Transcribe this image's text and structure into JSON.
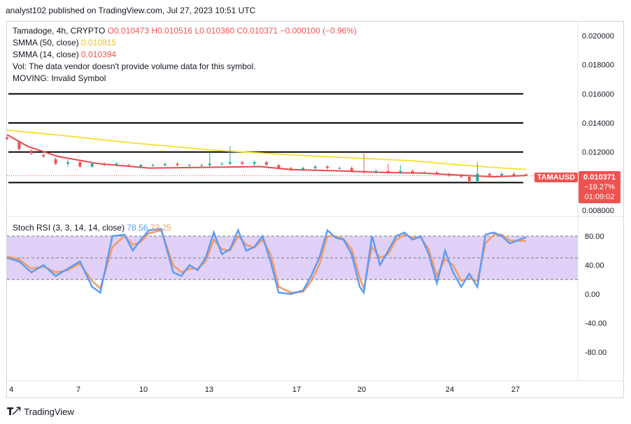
{
  "header": {
    "publisher_line": "analyst102 published on TradingView.com, Jul 27, 2023 10:51 UTC"
  },
  "legend": {
    "symbol_line_prefix": "Tamadoge, 4h, CRYPTO",
    "open": "O0.010473",
    "high": "H0.010516",
    "low": "L0.010360",
    "close": "C0.010371",
    "change": "−0.000100 (−0.96%)",
    "smma50_label": "SMMA (50, close)",
    "smma50_value": "0.010815",
    "smma14_label": "SMMA (14, close)",
    "smma14_value": "0.010394",
    "vol_line": "Vol: The data vendor doesn't provide volume data for this symbol.",
    "moving_line": "MOVING: Invalid Symbol"
  },
  "stoch_legend": {
    "label": "Stoch RSI (3, 3, 14, 14, close)",
    "k_value": "78.56",
    "d_value": "73.25"
  },
  "price_tag": {
    "symbol": "TAMAUSD",
    "price": "0.010371",
    "change": "−19.27%",
    "countdown": "01:09:02"
  },
  "footer": {
    "brand": "TradingView"
  },
  "colors": {
    "up": "#26a69a",
    "down": "#ef5350",
    "smma50": "#f5e33f",
    "smma14": "#e8494d",
    "stoch_k": "#5b9cf6",
    "stoch_d": "#f49a62",
    "stoch_band": "#e1d0f7"
  },
  "chart_data": [
    {
      "type": "candlestick",
      "title": "",
      "x_tick_labels": [
        "4",
        "7",
        "10",
        "13",
        "17",
        "20",
        "24",
        "27"
      ],
      "y_tick_labels": [
        "0.020000",
        "0.018000",
        "0.016000",
        "0.014000",
        "0.012000",
        "0.008000"
      ],
      "ylim": [
        0.0075,
        0.021
      ],
      "horizontal_levels": [
        0.016,
        0.014,
        0.012,
        0.0099
      ],
      "current_price": 0.010371,
      "smma50": [
        [
          0,
          0.0135
        ],
        [
          30,
          0.0131
        ],
        [
          60,
          0.01265
        ],
        [
          100,
          0.01215
        ],
        [
          140,
          0.0118
        ],
        [
          170,
          0.0116
        ],
        [
          200,
          0.0114
        ],
        [
          220,
          0.01115
        ],
        [
          245,
          0.0109
        ],
        [
          256,
          0.01081
        ]
      ],
      "smma14": [
        [
          0,
          0.0132
        ],
        [
          10,
          0.0124
        ],
        [
          25,
          0.0117
        ],
        [
          45,
          0.0112
        ],
        [
          70,
          0.0109
        ],
        [
          100,
          0.01095
        ],
        [
          125,
          0.011
        ],
        [
          140,
          0.0108
        ],
        [
          165,
          0.0107
        ],
        [
          185,
          0.0106
        ],
        [
          205,
          0.01055
        ],
        [
          225,
          0.0104
        ],
        [
          240,
          0.0103
        ],
        [
          256,
          0.01039
        ]
      ],
      "candles_approx": [
        [
          0,
          0.013,
          0.0131,
          0.0128,
          0.0129
        ],
        [
          6,
          0.0127,
          0.0128,
          0.0121,
          0.0122
        ],
        [
          12,
          0.0121,
          0.0122,
          0.0118,
          0.0119
        ],
        [
          18,
          0.0118,
          0.0119,
          0.0116,
          0.0117
        ],
        [
          24,
          0.0115,
          0.0116,
          0.0111,
          0.0112
        ],
        [
          30,
          0.0112,
          0.0115,
          0.011,
          0.0113
        ],
        [
          36,
          0.0113,
          0.0114,
          0.0109,
          0.011
        ],
        [
          42,
          0.011,
          0.0113,
          0.0109,
          0.0112
        ],
        [
          48,
          0.0112,
          0.0113,
          0.011,
          0.0111
        ],
        [
          54,
          0.0111,
          0.0113,
          0.011,
          0.0112
        ],
        [
          60,
          0.0111,
          0.0112,
          0.011,
          0.011
        ],
        [
          66,
          0.011,
          0.0112,
          0.0109,
          0.0111
        ],
        [
          72,
          0.0111,
          0.0112,
          0.011,
          0.0111
        ],
        [
          78,
          0.0111,
          0.0112,
          0.011,
          0.0112
        ],
        [
          84,
          0.0112,
          0.0113,
          0.011,
          0.0111
        ],
        [
          90,
          0.0111,
          0.0112,
          0.011,
          0.0111
        ],
        [
          96,
          0.0111,
          0.0112,
          0.011,
          0.0111
        ],
        [
          100,
          0.0111,
          0.012,
          0.011,
          0.0112
        ],
        [
          106,
          0.0112,
          0.0113,
          0.0111,
          0.0112
        ],
        [
          110,
          0.0112,
          0.0124,
          0.0111,
          0.0113
        ],
        [
          116,
          0.0113,
          0.0114,
          0.0111,
          0.0112
        ],
        [
          122,
          0.0112,
          0.0114,
          0.011,
          0.0113
        ],
        [
          128,
          0.0113,
          0.0114,
          0.0111,
          0.0111
        ],
        [
          134,
          0.0111,
          0.0112,
          0.0108,
          0.0109
        ],
        [
          140,
          0.0109,
          0.011,
          0.0107,
          0.0108
        ],
        [
          146,
          0.0108,
          0.011,
          0.0107,
          0.0109
        ],
        [
          152,
          0.0109,
          0.0111,
          0.0108,
          0.011
        ],
        [
          158,
          0.011,
          0.0111,
          0.0108,
          0.0109
        ],
        [
          164,
          0.0109,
          0.011,
          0.0108,
          0.0109
        ],
        [
          170,
          0.0109,
          0.011,
          0.0106,
          0.0107
        ],
        [
          176,
          0.0107,
          0.012,
          0.0105,
          0.0106
        ],
        [
          182,
          0.0106,
          0.0108,
          0.0105,
          0.0107
        ],
        [
          188,
          0.0107,
          0.0112,
          0.0105,
          0.0106
        ],
        [
          194,
          0.0106,
          0.0111,
          0.0105,
          0.0107
        ],
        [
          200,
          0.0107,
          0.0108,
          0.0105,
          0.0106
        ],
        [
          206,
          0.0106,
          0.0107,
          0.0105,
          0.0106
        ],
        [
          212,
          0.0106,
          0.0107,
          0.0104,
          0.0105
        ],
        [
          218,
          0.0105,
          0.0106,
          0.0103,
          0.0104
        ],
        [
          224,
          0.0104,
          0.0105,
          0.0102,
          0.0103
        ],
        [
          228,
          0.0103,
          0.0104,
          0.0098,
          0.01
        ],
        [
          232,
          0.01,
          0.0113,
          0.0099,
          0.0105
        ],
        [
          238,
          0.0105,
          0.0106,
          0.0103,
          0.0104
        ],
        [
          244,
          0.0104,
          0.0106,
          0.0103,
          0.0105
        ],
        [
          250,
          0.0105,
          0.0106,
          0.0103,
          0.0104
        ],
        [
          256,
          0.010473,
          0.010516,
          0.01036,
          0.010371
        ]
      ]
    },
    {
      "type": "line",
      "title": "",
      "y_tick_labels": [
        "80.00",
        "40.00",
        "0.00",
        "-40.00",
        "-80.00"
      ],
      "ylim": [
        -110,
        100
      ],
      "band": [
        20,
        80
      ],
      "midline": 50,
      "series": [
        {
          "name": "K",
          "values": [
            [
              0,
              50
            ],
            [
              6,
              45
            ],
            [
              12,
              30
            ],
            [
              18,
              40
            ],
            [
              24,
              25
            ],
            [
              30,
              35
            ],
            [
              36,
              45
            ],
            [
              42,
              10
            ],
            [
              46,
              2
            ],
            [
              52,
              80
            ],
            [
              58,
              82
            ],
            [
              62,
              60
            ],
            [
              66,
              75
            ],
            [
              70,
              88
            ],
            [
              76,
              90
            ],
            [
              82,
              30
            ],
            [
              86,
              25
            ],
            [
              90,
              40
            ],
            [
              94,
              33
            ],
            [
              98,
              50
            ],
            [
              102,
              85
            ],
            [
              106,
              55
            ],
            [
              110,
              62
            ],
            [
              114,
              88
            ],
            [
              118,
              60
            ],
            [
              122,
              65
            ],
            [
              126,
              80
            ],
            [
              130,
              45
            ],
            [
              134,
              2
            ],
            [
              140,
              0
            ],
            [
              146,
              5
            ],
            [
              150,
              25
            ],
            [
              154,
              50
            ],
            [
              158,
              88
            ],
            [
              162,
              78
            ],
            [
              166,
              75
            ],
            [
              170,
              55
            ],
            [
              174,
              10
            ],
            [
              176,
              2
            ],
            [
              180,
              80
            ],
            [
              184,
              40
            ],
            [
              188,
              60
            ],
            [
              192,
              80
            ],
            [
              196,
              85
            ],
            [
              200,
              75
            ],
            [
              204,
              80
            ],
            [
              208,
              55
            ],
            [
              212,
              15
            ],
            [
              216,
              60
            ],
            [
              220,
              30
            ],
            [
              224,
              10
            ],
            [
              228,
              28
            ],
            [
              232,
              10
            ],
            [
              236,
              82
            ],
            [
              240,
              85
            ],
            [
              244,
              80
            ],
            [
              248,
              70
            ],
            [
              256,
              78.56
            ]
          ]
        },
        {
          "name": "D",
          "values": [
            [
              0,
              52
            ],
            [
              6,
              48
            ],
            [
              12,
              35
            ],
            [
              18,
              38
            ],
            [
              24,
              30
            ],
            [
              30,
              33
            ],
            [
              36,
              42
            ],
            [
              42,
              18
            ],
            [
              46,
              8
            ],
            [
              52,
              65
            ],
            [
              58,
              80
            ],
            [
              62,
              68
            ],
            [
              66,
              72
            ],
            [
              70,
              84
            ],
            [
              76,
              88
            ],
            [
              82,
              40
            ],
            [
              86,
              30
            ],
            [
              90,
              35
            ],
            [
              94,
              35
            ],
            [
              98,
              45
            ],
            [
              102,
              75
            ],
            [
              106,
              62
            ],
            [
              110,
              60
            ],
            [
              114,
              80
            ],
            [
              118,
              68
            ],
            [
              122,
              64
            ],
            [
              126,
              75
            ],
            [
              130,
              55
            ],
            [
              134,
              10
            ],
            [
              140,
              2
            ],
            [
              146,
              3
            ],
            [
              150,
              18
            ],
            [
              154,
              40
            ],
            [
              158,
              80
            ],
            [
              162,
              80
            ],
            [
              166,
              76
            ],
            [
              170,
              62
            ],
            [
              174,
              22
            ],
            [
              176,
              8
            ],
            [
              180,
              65
            ],
            [
              184,
              50
            ],
            [
              188,
              55
            ],
            [
              192,
              75
            ],
            [
              196,
              82
            ],
            [
              200,
              78
            ],
            [
              204,
              78
            ],
            [
              208,
              62
            ],
            [
              212,
              25
            ],
            [
              216,
              48
            ],
            [
              220,
              40
            ],
            [
              224,
              18
            ],
            [
              228,
              22
            ],
            [
              232,
              18
            ],
            [
              236,
              70
            ],
            [
              240,
              82
            ],
            [
              244,
              82
            ],
            [
              248,
              74
            ],
            [
              256,
              73.25
            ]
          ]
        }
      ]
    }
  ]
}
